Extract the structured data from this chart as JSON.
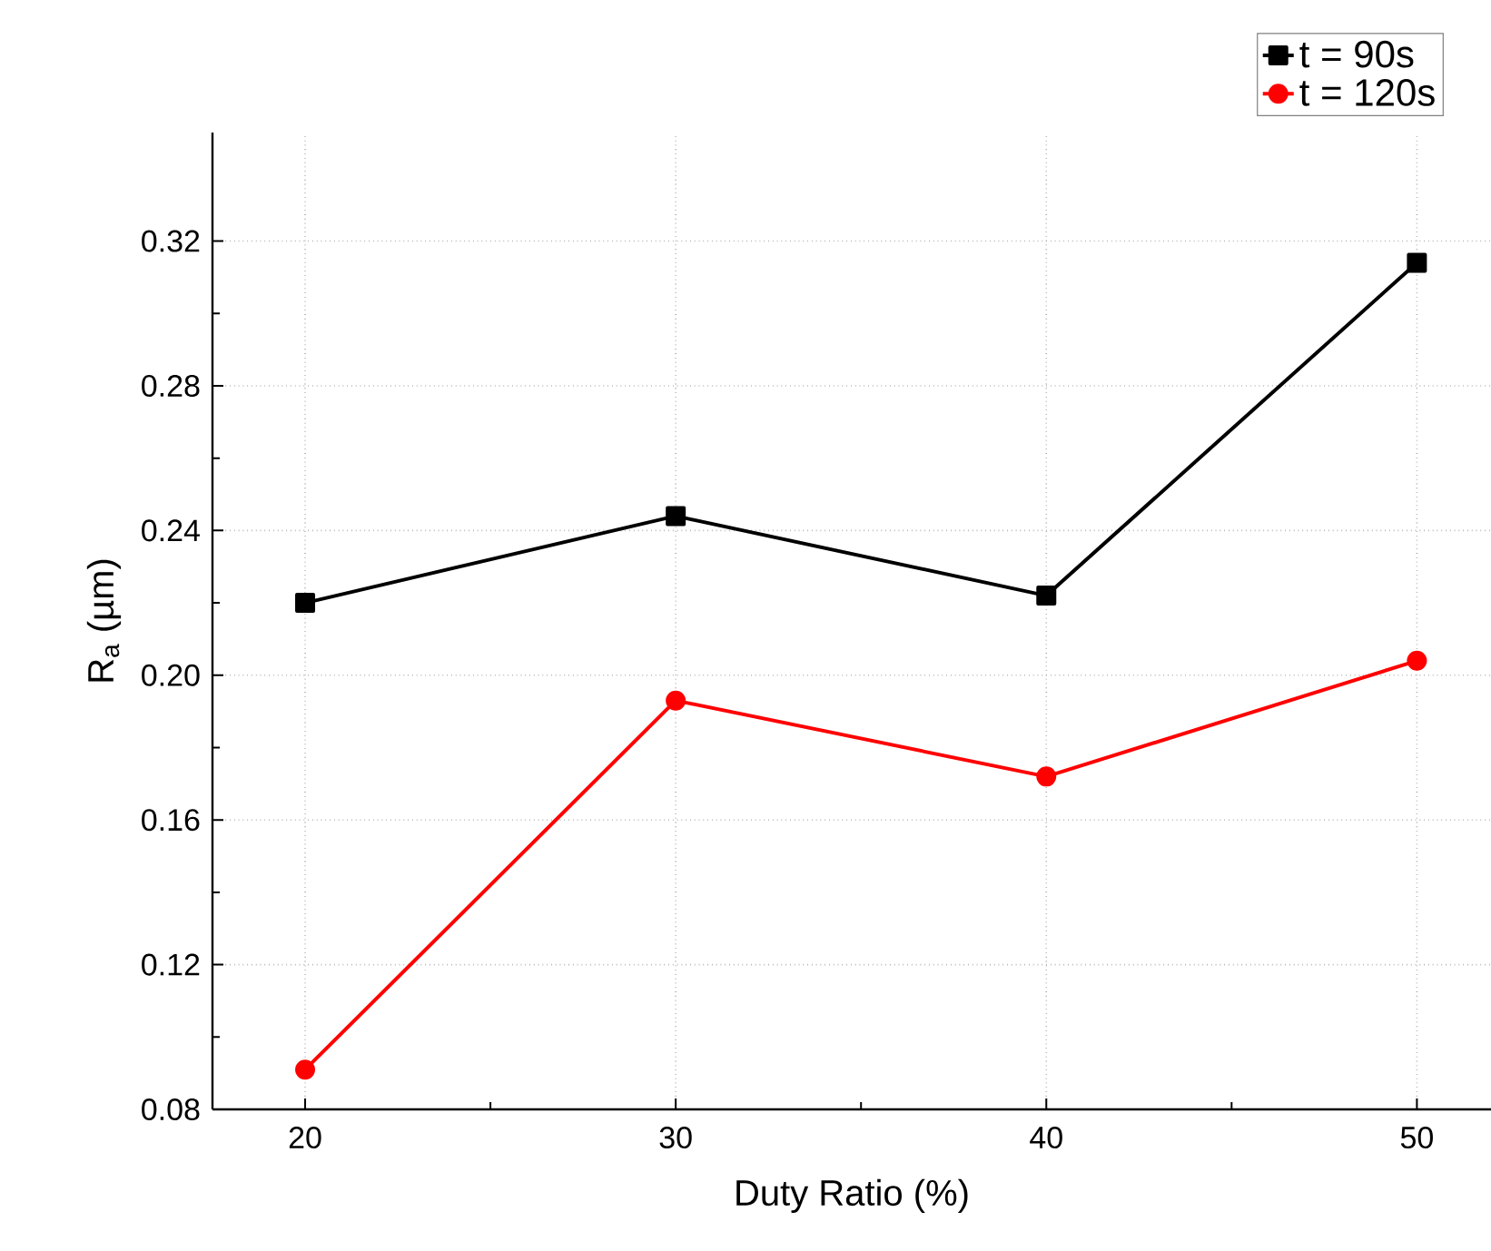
{
  "chart_data": {
    "type": "line",
    "xlabel": "Duty Ratio (%)",
    "ylabel": "R$_{a}$ (µm)",
    "x": [
      20,
      30,
      40,
      50
    ],
    "series": [
      {
        "name": "t = 90s",
        "color": "#000000",
        "marker": "square",
        "values": [
          0.22,
          0.244,
          0.222,
          0.314
        ]
      },
      {
        "name": "t = 120s",
        "color": "#ff0000",
        "marker": "circle",
        "values": [
          0.091,
          0.193,
          0.172,
          0.204
        ]
      }
    ],
    "xlim": [
      17.5,
      52
    ],
    "xticks": [
      20,
      30,
      40,
      50
    ],
    "ylim": [
      0.08,
      0.35
    ],
    "yticks": [
      0.08,
      0.12,
      0.16,
      {
        "value": 0.2,
        "label": "0.20"
      },
      0.24,
      0.28,
      0.32
    ],
    "grid": true,
    "legend": "top right",
    "line_style": "solid"
  }
}
